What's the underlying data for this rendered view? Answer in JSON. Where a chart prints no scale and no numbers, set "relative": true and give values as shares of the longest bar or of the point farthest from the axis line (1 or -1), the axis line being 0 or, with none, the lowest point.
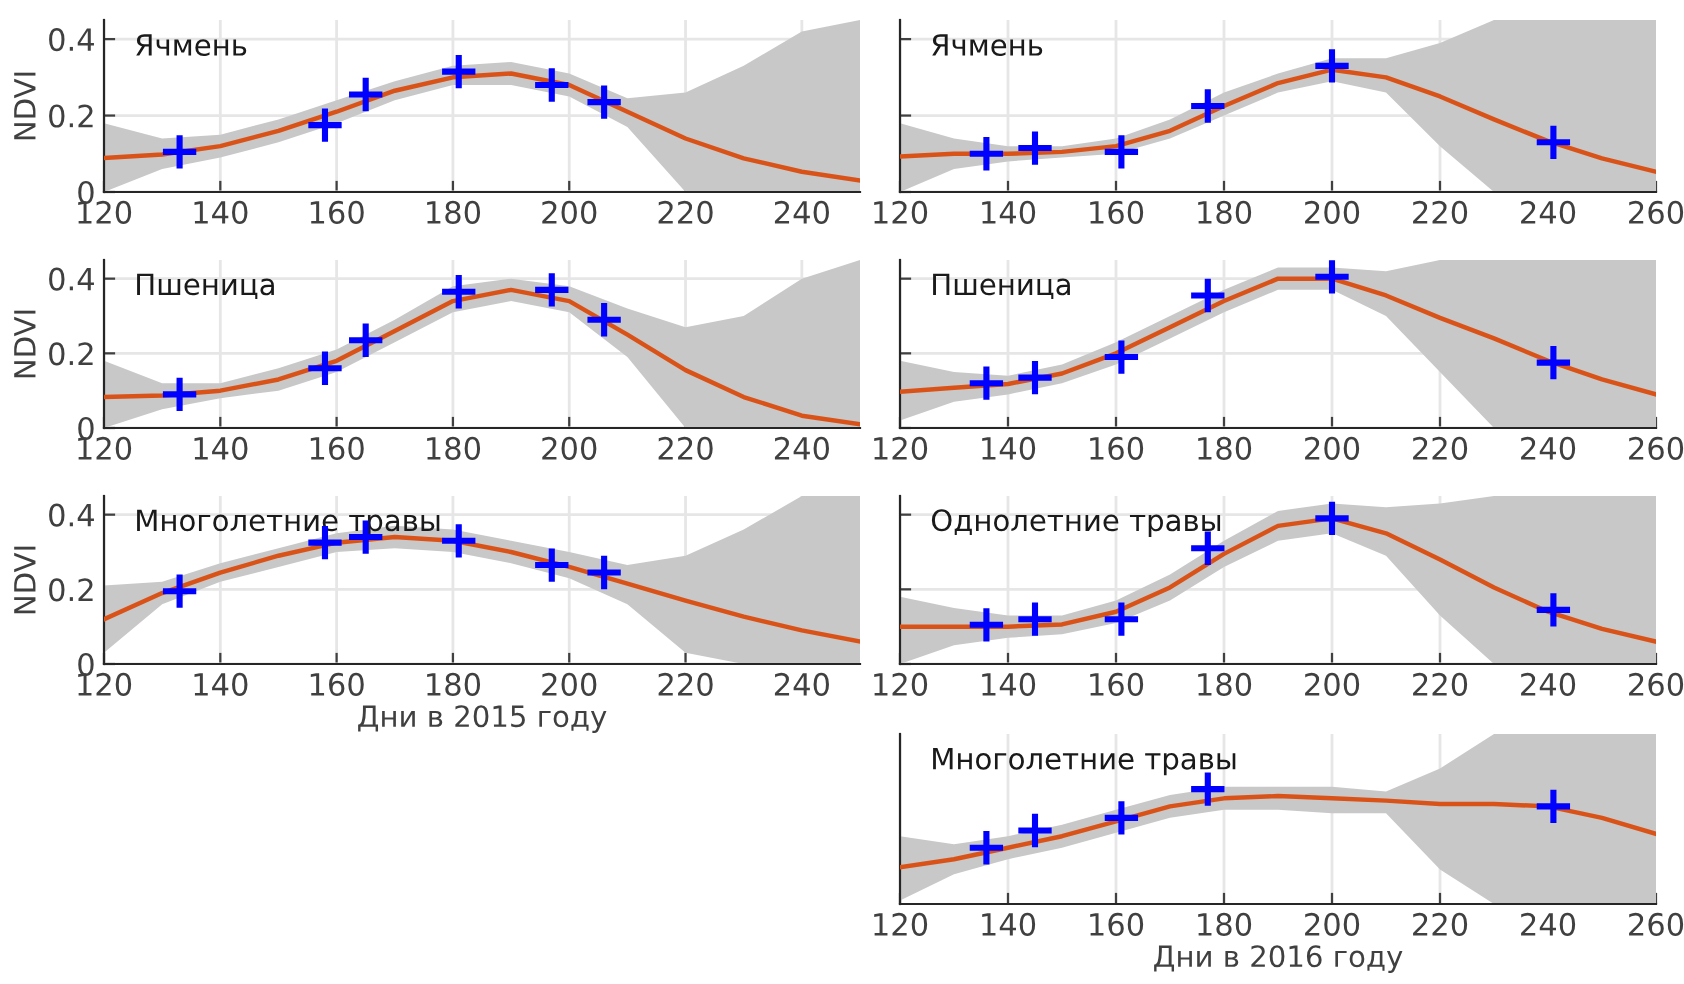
{
  "chart_data": [
    {
      "type": "line",
      "title": "Ячмень",
      "ylabel": "NDVI",
      "xlim": [
        120,
        250
      ],
      "xticks": [
        120,
        140,
        160,
        180,
        200,
        220,
        240
      ],
      "ylim": [
        0,
        0.45
      ],
      "yticks": [
        0,
        0.2,
        0.4
      ],
      "grid": true,
      "series": [
        {
          "color": "#d95319",
          "x": [
            120,
            130,
            140,
            150,
            160,
            170,
            180,
            190,
            200,
            210,
            220,
            230,
            240,
            250
          ],
          "values": [
            0.089,
            0.098,
            0.12,
            0.16,
            0.21,
            0.265,
            0.3,
            0.31,
            0.28,
            0.21,
            0.14,
            0.088,
            0.053,
            0.03
          ],
          "lower": [
            0,
            0.06,
            0.09,
            0.13,
            0.18,
            0.24,
            0.28,
            0.28,
            0.25,
            0.17,
            0,
            0,
            0,
            0
          ],
          "upper": [
            0.18,
            0.14,
            0.15,
            0.19,
            0.24,
            0.29,
            0.33,
            0.34,
            0.31,
            0.245,
            0.26,
            0.33,
            0.42,
            0.45
          ]
        },
        {
          "type": "scatter",
          "color": "#0000ff",
          "marker": "cross",
          "x": [
            133,
            158,
            165,
            181,
            197,
            206
          ],
          "values": [
            0.105,
            0.175,
            0.255,
            0.315,
            0.28,
            0.235
          ]
        }
      ]
    },
    {
      "type": "line",
      "title": "Ячмень",
      "tick_labels": "x",
      "xlim": [
        120,
        260
      ],
      "xticks": [
        120,
        140,
        160,
        180,
        200,
        220,
        240,
        260
      ],
      "ylim": [
        0,
        0.45
      ],
      "yticks": [
        {
          "value": 0,
          "label": null
        },
        {
          "value": 0.2,
          "label": null
        },
        {
          "value": 0.4,
          "label": null
        }
      ],
      "grid": true,
      "series": [
        {
          "color": "#d95319",
          "x": [
            120,
            130,
            140,
            150,
            160,
            170,
            180,
            190,
            200,
            210,
            220,
            230,
            240,
            250,
            260
          ],
          "values": [
            0.093,
            0.1,
            0.1,
            0.105,
            0.12,
            0.16,
            0.225,
            0.285,
            0.32,
            0.3,
            0.25,
            0.19,
            0.133,
            0.088,
            0.053
          ],
          "lower": [
            0,
            0.06,
            0.08,
            0.09,
            0.1,
            0.14,
            0.2,
            0.26,
            0.29,
            0.26,
            0.12,
            0,
            0,
            0,
            0
          ],
          "upper": [
            0.18,
            0.14,
            0.12,
            0.12,
            0.14,
            0.19,
            0.26,
            0.31,
            0.35,
            0.35,
            0.39,
            0.45,
            0.45,
            0.45,
            0.45
          ]
        },
        {
          "type": "scatter",
          "color": "#0000ff",
          "marker": "cross",
          "x": [
            136,
            145,
            161,
            177,
            200,
            241
          ],
          "values": [
            0.1,
            0.115,
            0.105,
            0.225,
            0.33,
            0.13
          ]
        }
      ]
    },
    {
      "type": "line",
      "title": "Пшеница",
      "ylabel": "NDVI",
      "xlim": [
        120,
        250
      ],
      "xticks": [
        120,
        140,
        160,
        180,
        200,
        220,
        240
      ],
      "ylim": [
        0,
        0.45
      ],
      "yticks": [
        0,
        0.2,
        0.4
      ],
      "grid": true,
      "series": [
        {
          "color": "#d95319",
          "x": [
            120,
            130,
            140,
            150,
            160,
            170,
            180,
            190,
            200,
            210,
            220,
            230,
            240,
            250
          ],
          "values": [
            0.083,
            0.087,
            0.1,
            0.13,
            0.18,
            0.26,
            0.34,
            0.37,
            0.34,
            0.25,
            0.155,
            0.083,
            0.033,
            0.01
          ],
          "lower": [
            0,
            0.05,
            0.08,
            0.1,
            0.15,
            0.23,
            0.31,
            0.34,
            0.31,
            0.19,
            0,
            0,
            0,
            0
          ],
          "upper": [
            0.18,
            0.12,
            0.12,
            0.16,
            0.21,
            0.29,
            0.38,
            0.4,
            0.38,
            0.32,
            0.27,
            0.3,
            0.4,
            0.45
          ]
        },
        {
          "type": "scatter",
          "color": "#0000ff",
          "marker": "cross",
          "x": [
            133,
            158,
            165,
            181,
            197,
            206
          ],
          "values": [
            0.09,
            0.16,
            0.235,
            0.365,
            0.37,
            0.29
          ]
        }
      ]
    },
    {
      "type": "line",
      "title": "Пшеница",
      "tick_labels": "x",
      "xlim": [
        120,
        260
      ],
      "xticks": [
        120,
        140,
        160,
        180,
        200,
        220,
        240,
        260
      ],
      "ylim": [
        0,
        0.45
      ],
      "yticks": [
        {
          "value": 0,
          "label": null
        },
        {
          "value": 0.2,
          "label": null
        },
        {
          "value": 0.4,
          "label": null
        }
      ],
      "grid": true,
      "series": [
        {
          "color": "#d95319",
          "x": [
            120,
            130,
            140,
            150,
            160,
            170,
            180,
            190,
            200,
            210,
            220,
            230,
            240,
            250,
            260
          ],
          "values": [
            0.097,
            0.108,
            0.118,
            0.146,
            0.2,
            0.27,
            0.34,
            0.4,
            0.4,
            0.355,
            0.295,
            0.24,
            0.18,
            0.13,
            0.09
          ],
          "lower": [
            0.02,
            0.07,
            0.09,
            0.12,
            0.17,
            0.24,
            0.31,
            0.37,
            0.37,
            0.3,
            0.15,
            0,
            0,
            0,
            0
          ],
          "upper": [
            0.18,
            0.15,
            0.14,
            0.17,
            0.23,
            0.3,
            0.37,
            0.43,
            0.43,
            0.42,
            0.45,
            0.45,
            0.45,
            0.45,
            0.45
          ]
        },
        {
          "type": "scatter",
          "color": "#0000ff",
          "marker": "cross",
          "x": [
            136,
            145,
            161,
            177,
            200,
            241
          ],
          "values": [
            0.12,
            0.135,
            0.19,
            0.355,
            0.405,
            0.175
          ]
        }
      ]
    },
    {
      "type": "line",
      "title": "Многолетние травы",
      "ylabel": "NDVI",
      "xlabel": "Дни в 2015 году",
      "xlim": [
        120,
        250
      ],
      "xticks": [
        120,
        140,
        160,
        180,
        200,
        220,
        240
      ],
      "ylim": [
        0,
        0.45
      ],
      "yticks": [
        0,
        0.2,
        0.4
      ],
      "grid": true,
      "series": [
        {
          "color": "#d95319",
          "x": [
            120,
            130,
            140,
            150,
            160,
            170,
            180,
            190,
            200,
            210,
            220,
            230,
            240,
            250
          ],
          "values": [
            0.12,
            0.19,
            0.245,
            0.29,
            0.325,
            0.34,
            0.33,
            0.3,
            0.26,
            0.215,
            0.17,
            0.127,
            0.09,
            0.06
          ],
          "lower": [
            0.03,
            0.16,
            0.22,
            0.26,
            0.3,
            0.31,
            0.3,
            0.27,
            0.23,
            0.16,
            0.03,
            0,
            0,
            0
          ],
          "upper": [
            0.21,
            0.22,
            0.27,
            0.31,
            0.35,
            0.37,
            0.36,
            0.33,
            0.3,
            0.265,
            0.29,
            0.36,
            0.45,
            0.45
          ]
        },
        {
          "type": "scatter",
          "color": "#0000ff",
          "marker": "cross",
          "x": [
            133,
            158,
            165,
            181,
            197,
            206
          ],
          "values": [
            0.195,
            0.325,
            0.34,
            0.33,
            0.265,
            0.245
          ]
        }
      ]
    },
    {
      "type": "line",
      "title": "Однолетние травы",
      "tick_labels": "x",
      "xlim": [
        120,
        260
      ],
      "xticks": [
        120,
        140,
        160,
        180,
        200,
        220,
        240,
        260
      ],
      "ylim": [
        0,
        0.45
      ],
      "yticks": [
        {
          "value": 0,
          "label": null
        },
        {
          "value": 0.2,
          "label": null
        },
        {
          "value": 0.4,
          "label": null
        }
      ],
      "grid": true,
      "series": [
        {
          "color": "#d95319",
          "x": [
            120,
            130,
            140,
            150,
            160,
            170,
            180,
            190,
            200,
            210,
            220,
            230,
            240,
            250,
            260
          ],
          "values": [
            0.1,
            0.1,
            0.1,
            0.106,
            0.14,
            0.205,
            0.295,
            0.37,
            0.39,
            0.35,
            0.28,
            0.205,
            0.14,
            0.094,
            0.06
          ],
          "lower": [
            0,
            0.05,
            0.07,
            0.08,
            0.11,
            0.17,
            0.26,
            0.33,
            0.35,
            0.29,
            0.13,
            0,
            0,
            0,
            0
          ],
          "upper": [
            0.18,
            0.15,
            0.13,
            0.13,
            0.17,
            0.24,
            0.33,
            0.41,
            0.43,
            0.42,
            0.43,
            0.45,
            0.45,
            0.45,
            0.45
          ]
        },
        {
          "type": "scatter",
          "color": "#0000ff",
          "marker": "cross",
          "x": [
            136,
            145,
            161,
            177,
            200,
            241
          ],
          "values": [
            0.105,
            0.12,
            0.12,
            0.31,
            0.39,
            0.145
          ]
        }
      ]
    },
    {
      "type": "line",
      "title": "Многолетние травы",
      "xlabel": "Дни в 2016 году",
      "relative": true,
      "xlim": [
        120,
        260
      ],
      "xticks": [
        120,
        140,
        160,
        180,
        200,
        220,
        240,
        260
      ],
      "grid": true,
      "series": [
        {
          "color": "#d95319",
          "x": [
            120,
            130,
            140,
            150,
            160,
            170,
            180,
            190,
            200,
            210,
            220,
            230,
            240,
            250,
            260
          ],
          "values": [
            0.32,
            0.39,
            0.49,
            0.59,
            0.72,
            0.85,
            0.92,
            0.94,
            0.92,
            0.9,
            0.87,
            0.87,
            0.85,
            0.75,
            0.61
          ],
          "lower": [
            0.03,
            0.26,
            0.39,
            0.49,
            0.62,
            0.75,
            0.82,
            0.82,
            0.79,
            0.79,
            0.3,
            0,
            0,
            0,
            0
          ],
          "upper": [
            0.59,
            0.52,
            0.59,
            0.69,
            0.82,
            0.95,
            1.02,
            1.02,
            1.02,
            0.98,
            1.18,
            1.48,
            1.48,
            1.48,
            1.48
          ]
        },
        {
          "type": "scatter",
          "color": "#0000ff",
          "marker": "cross",
          "x": [
            136,
            145,
            161,
            177,
            241
          ],
          "values": [
            0.49,
            0.64,
            0.75,
            1,
            0.85
          ]
        }
      ]
    }
  ]
}
